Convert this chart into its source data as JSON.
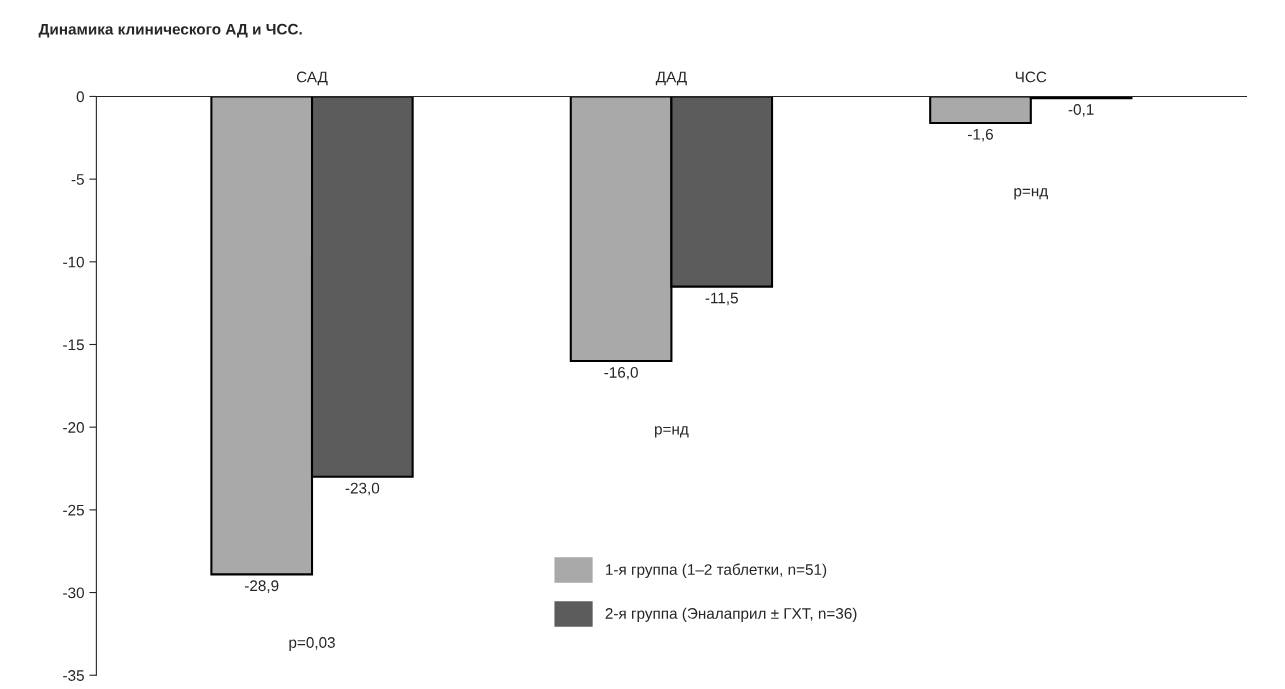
{
  "chart_data": {
    "type": "bar",
    "title": "Динамика клинического АД и ЧСС.",
    "categories": [
      "САД",
      "ДАД",
      "ЧСС"
    ],
    "series": [
      {
        "name": "1-я группа (1–2 таблетки, n=51)",
        "color": "#a9a9a9",
        "values": [
          -28.9,
          -16.0,
          -1.6
        ],
        "value_labels": [
          "-28,9",
          "-16,0",
          "-1,6"
        ]
      },
      {
        "name": "2-я группа (Эналаприл ± ГХТ, n=36)",
        "color": "#5c5c5c",
        "values": [
          -23.0,
          -11.5,
          -0.1
        ],
        "value_labels": [
          "-23,0",
          "-11,5",
          "-0,1"
        ]
      }
    ],
    "ylim": [
      -35,
      0
    ],
    "yticks": [
      0,
      -5,
      -10,
      -15,
      -20,
      -25,
      -30,
      -35
    ],
    "grid": false,
    "legend": "bottom",
    "annotations": [
      "p=0,03",
      "p=нд",
      "p=нд"
    ]
  }
}
